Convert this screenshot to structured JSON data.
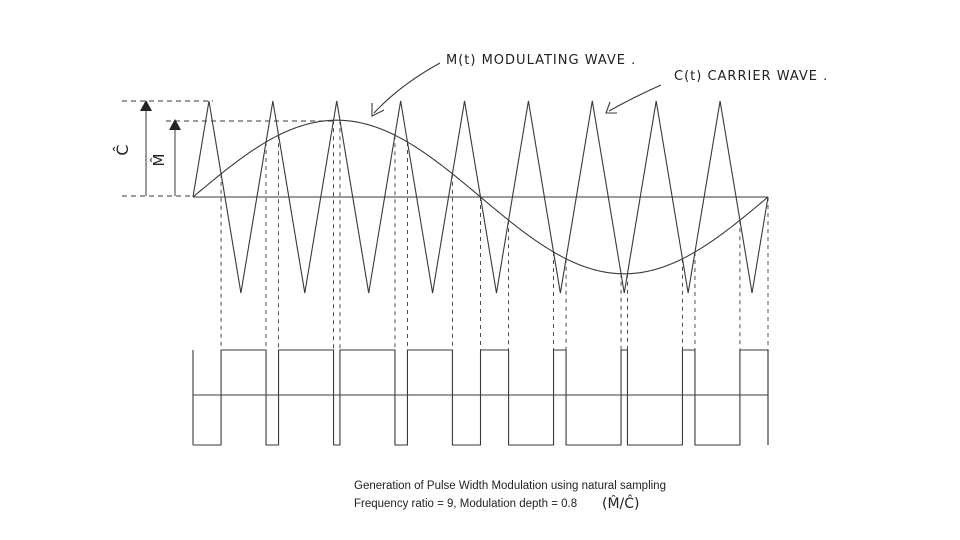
{
  "labels": {
    "modulating": "M(t) MODULATING WAVE .",
    "carrier": "C(t) CARRIER WAVE .",
    "c_amp": "Ĉ",
    "m_amp": "M̂"
  },
  "caption": {
    "line1": "Generation of Pulse Width Modulation using natural sampling",
    "line2": "Frequency ratio = 9, Modulation depth = 0.8",
    "ratio_note": "(M̂/Ĉ)"
  },
  "params": {
    "frequency_ratio": 9,
    "modulation_depth": 0.8
  },
  "colors": {
    "ink": "#3a3a3a",
    "text": "#222222"
  }
}
